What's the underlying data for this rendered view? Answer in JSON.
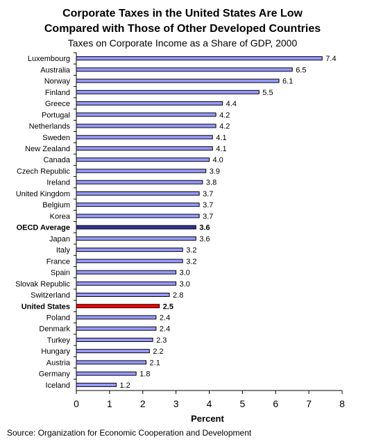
{
  "header": {
    "title_line1": "Corporate Taxes in the United States Are Low",
    "title_line2": "Compared with Those of Other Developed Countries",
    "subtitle": "Taxes on Corporate Income as a Share of GDP, 2000"
  },
  "footer": {
    "source": "Source: Organization for Economic Cooperation and Development"
  },
  "chart_data": {
    "type": "bar",
    "orientation": "horizontal",
    "xlabel": "Percent",
    "ylabel": "",
    "xlim": [
      0,
      8
    ],
    "xticks": [
      "0",
      "1",
      "2",
      "3",
      "4",
      "5",
      "6",
      "7",
      "8"
    ],
    "grid": false,
    "legend": "none",
    "colors": {
      "default": "#9999ff",
      "oecd_average": "#333399",
      "united_states": "#ff0000"
    },
    "highlighted": [
      "OECD Average",
      "United States"
    ],
    "categories": [
      "Luxembourg",
      "Australia",
      "Norway",
      "Finland",
      "Greece",
      "Portugal",
      "Netherlands",
      "Sweden",
      "New Zealand",
      "Canada",
      "Czech Republic",
      "Ireland",
      "United Kingdom",
      "Belgium",
      "Korea",
      "OECD Average",
      "Japan",
      "Italy",
      "France",
      "Spain",
      "Slovak Republic",
      "Switzerland",
      "United States",
      "Poland",
      "Denmark",
      "Turkey",
      "Hungary",
      "Austria",
      "Germany",
      "Iceland"
    ],
    "values": [
      7.4,
      6.5,
      6.1,
      5.5,
      4.4,
      4.2,
      4.2,
      4.1,
      4.1,
      4.0,
      3.9,
      3.8,
      3.7,
      3.7,
      3.7,
      3.6,
      3.6,
      3.2,
      3.2,
      3.0,
      3.0,
      2.8,
      2.5,
      2.4,
      2.4,
      2.3,
      2.2,
      2.1,
      1.8,
      1.2
    ],
    "value_labels": [
      "7.4",
      "6.5",
      "6.1",
      "5.5",
      "4.4",
      "4.2",
      "4.2",
      "4.1",
      "4.1",
      "4.0",
      "3.9",
      "3.8",
      "3.7",
      "3.7",
      "3.7",
      "3.6",
      "3.6",
      "3.2",
      "3.2",
      "3.0",
      "3.0",
      "2.8",
      "2.5",
      "2.4",
      "2.4",
      "2.3",
      "2.2",
      "2.1",
      "1.8",
      "1.2"
    ]
  }
}
